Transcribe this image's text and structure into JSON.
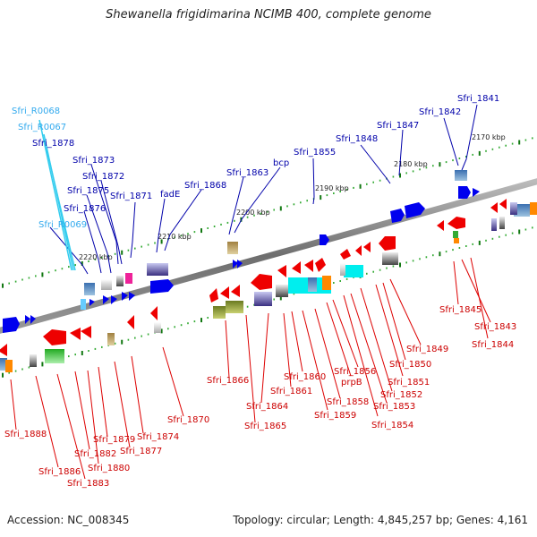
{
  "title": "Shewanella frigidimarina NCIMB 400, complete genome",
  "accession": "Accession: NC_008345",
  "topology": "Topology: circular; Length: 4,845,257 bp; Genes: 4,161",
  "colors": {
    "forward_label": "#0000aa",
    "rna_label": "#33aaee",
    "reverse_label": "#cc0000",
    "backbone": "#888888"
  },
  "kbp_ticks": [
    "2170 kbp",
    "2180 kbp",
    "2190 kbp",
    "2200 kbp",
    "2210 kbp",
    "2220 kbp"
  ],
  "upper_labels": [
    "Sfri_1841",
    "Sfri_1842",
    "Sfri_1847",
    "Sfri_1848",
    "Sfri_1855",
    "bcp",
    "Sfri_1863",
    "Sfri_1868",
    "fadE",
    "Sfri_1871",
    "Sfri_1873",
    "Sfri_1872",
    "Sfri_1875",
    "Sfri_1876",
    "Sfri_1878",
    "Sfri_R0068",
    "Sfri_R0067",
    "Sfri_R0069"
  ],
  "lower_labels": [
    "Sfri_1845",
    "Sfri_1843",
    "Sfri_1844",
    "Sfri_1849",
    "Sfri_1850",
    "Sfri_1851",
    "Sfri_1852",
    "Sfri_1853",
    "Sfri_1854",
    "Sfri_1856",
    "prpB",
    "Sfri_1858",
    "Sfri_1859",
    "Sfri_1860",
    "Sfri_1861",
    "Sfri_1864",
    "Sfri_1865",
    "Sfri_1866",
    "Sfri_1870",
    "Sfri_1874",
    "Sfri_1877",
    "Sfri_1879",
    "Sfri_1880",
    "Sfri_1882",
    "Sfri_1883",
    "Sfri_1886",
    "Sfri_1888"
  ]
}
